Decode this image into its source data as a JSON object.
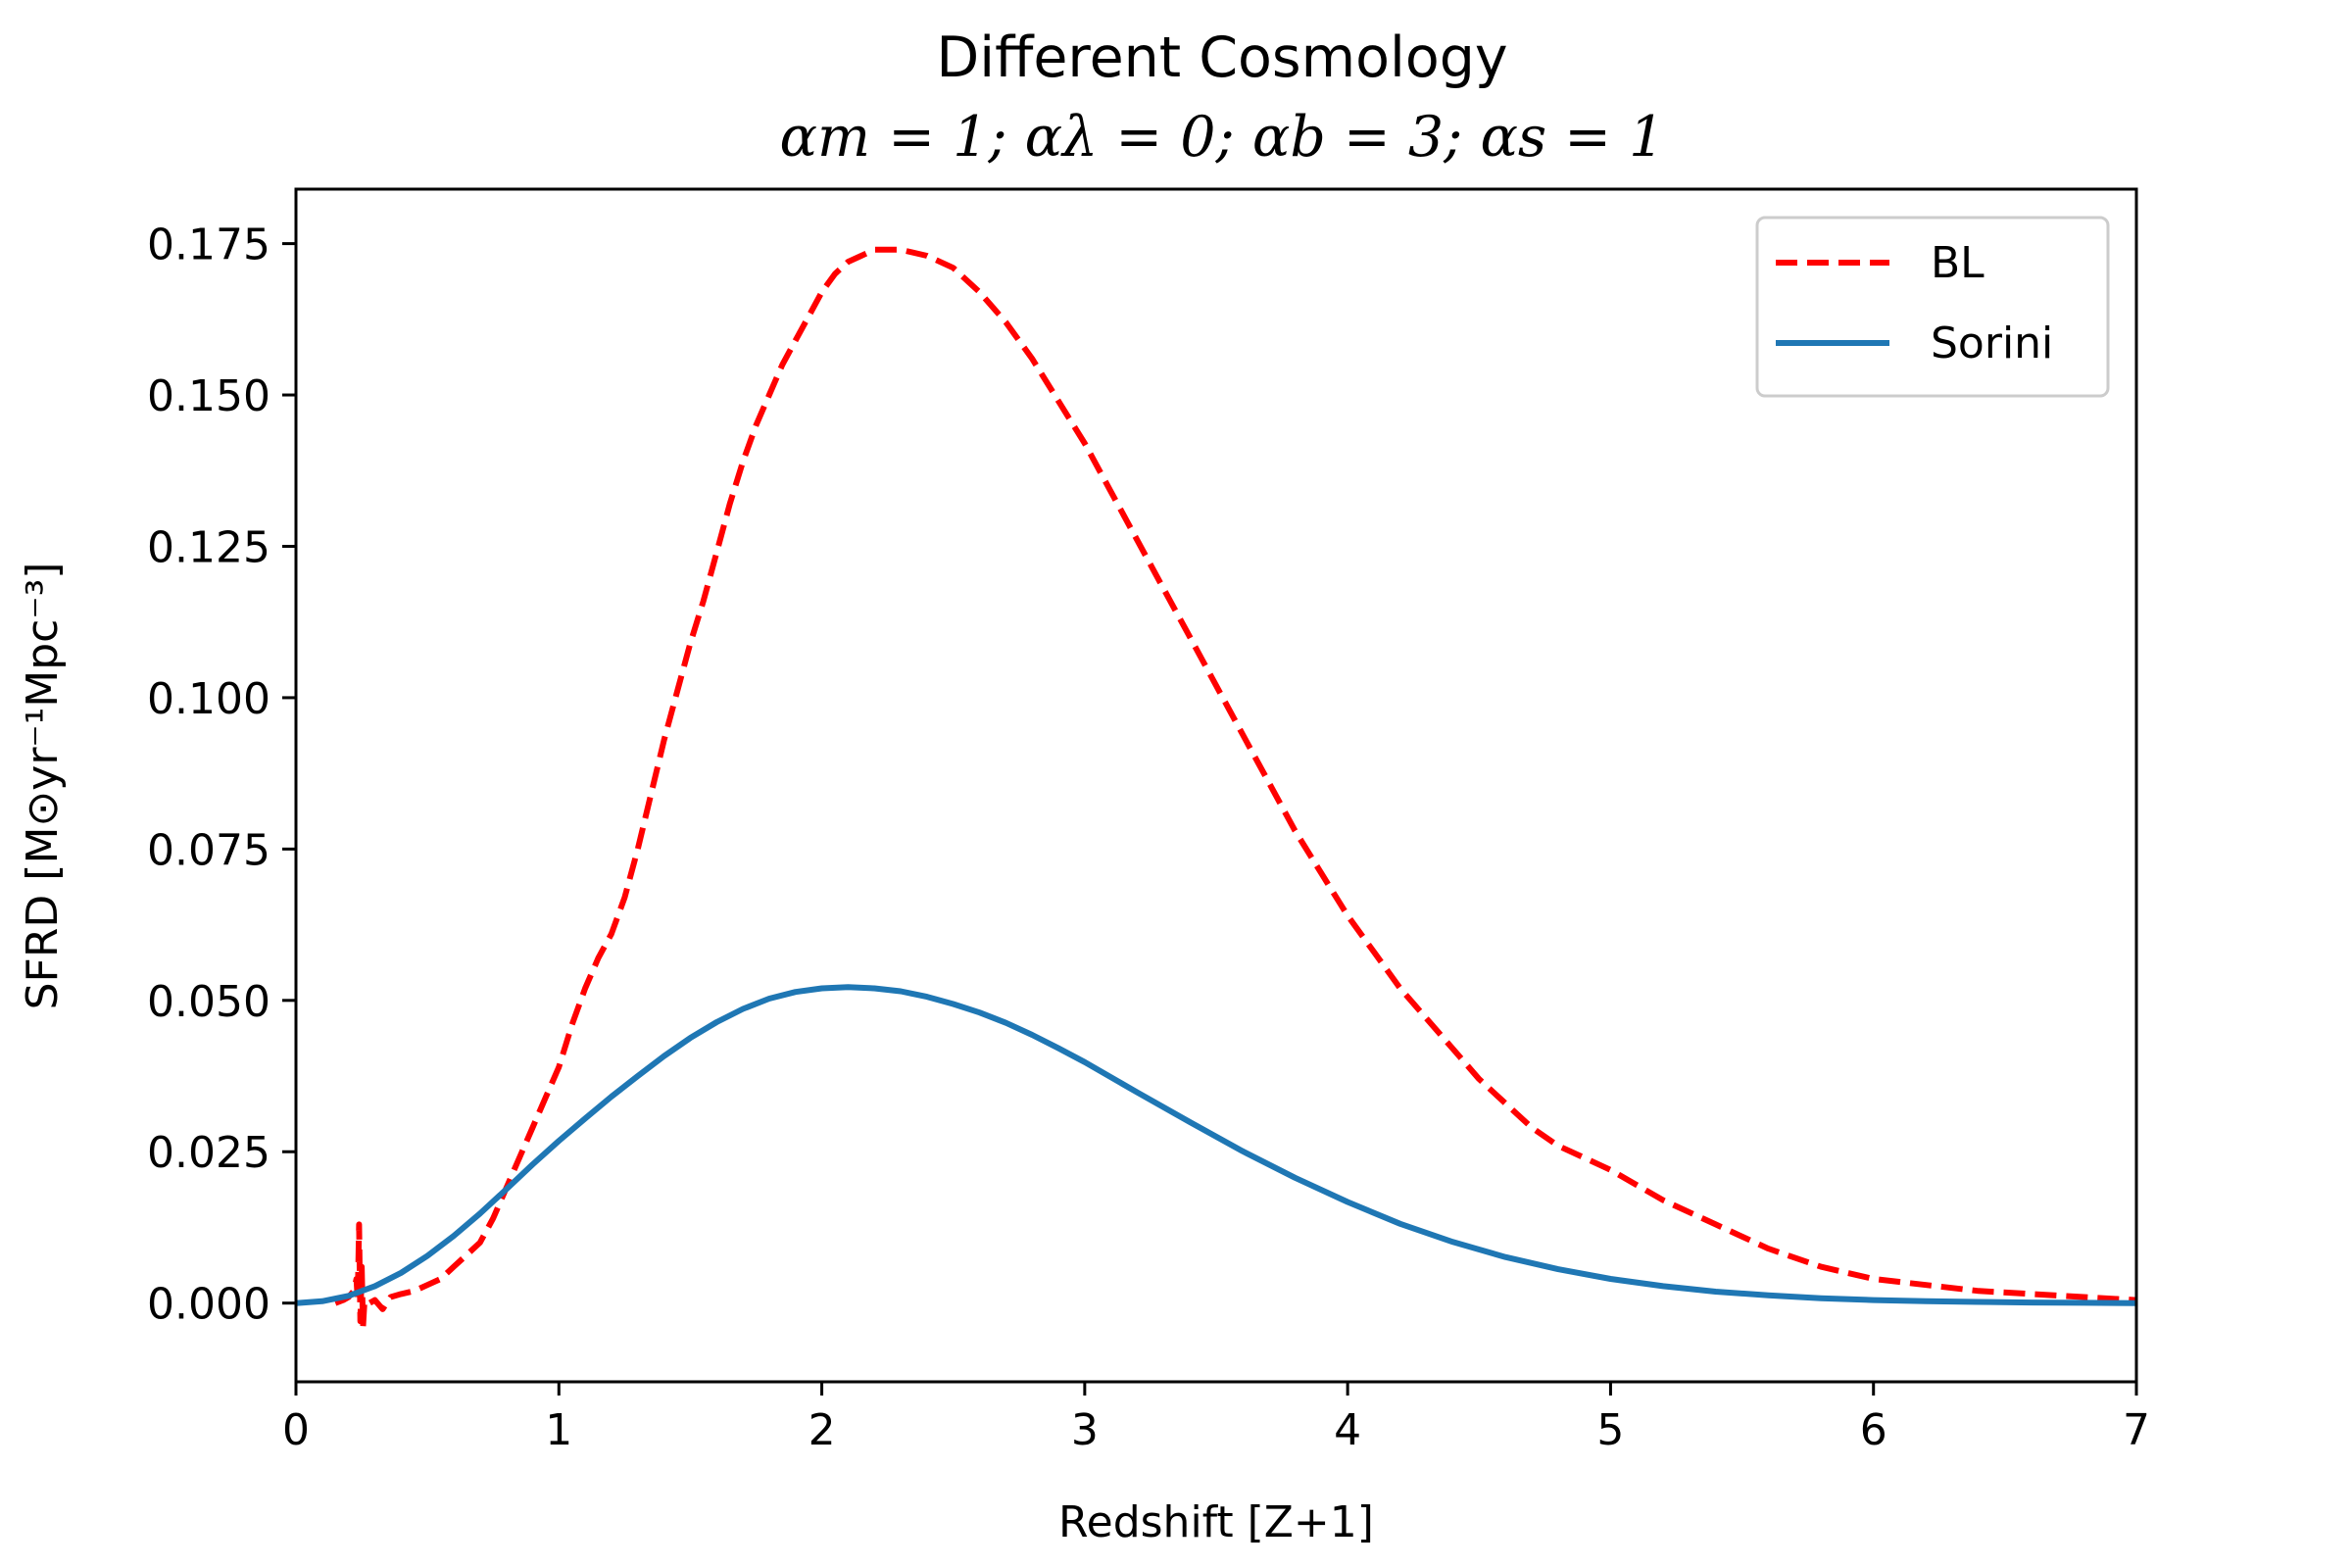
{
  "chart_data": {
    "type": "line",
    "title": "Different Cosmology",
    "subtitle": "αm = 1; αλ = 0; αb = 3; αs = 1",
    "xlabel": "Redshift [Z+1]",
    "ylabel": "SFRD [M⊙yr⁻¹Mpc⁻³]",
    "xlim": [
      0,
      7
    ],
    "ylim": [
      -0.013,
      0.184
    ],
    "xticks": [
      "0",
      "1",
      "2",
      "3",
      "4",
      "5",
      "6",
      "7"
    ],
    "yticks": [
      "0.000",
      "0.025",
      "0.050",
      "0.075",
      "0.100",
      "0.125",
      "0.150",
      "0.175"
    ],
    "grid": false,
    "legend": {
      "position": "top-right"
    },
    "series": [
      {
        "name": "BL",
        "color": "#ff0000",
        "style": "dashed",
        "x": [
          0.15,
          0.18,
          0.2,
          0.22,
          0.225,
          0.23,
          0.235,
          0.24,
          0.245,
          0.25,
          0.255,
          0.26,
          0.27,
          0.28,
          0.3,
          0.33,
          0.36,
          0.4,
          0.45,
          0.5,
          0.55,
          0.6,
          0.65,
          0.7,
          0.75,
          0.8,
          0.85,
          0.9,
          0.95,
          1.0,
          1.05,
          1.1,
          1.15,
          1.2,
          1.25,
          1.3,
          1.35,
          1.4,
          1.45,
          1.5,
          1.55,
          1.6,
          1.65,
          1.7,
          1.75,
          1.8,
          1.85,
          1.9,
          1.95,
          2.0,
          2.05,
          2.1,
          2.15,
          2.2,
          2.25,
          2.3,
          2.4,
          2.5,
          2.6,
          2.7,
          2.8,
          2.9,
          3.0,
          3.1,
          3.2,
          3.3,
          3.4,
          3.5,
          3.6,
          3.7,
          3.8,
          3.9,
          4.0,
          4.1,
          4.2,
          4.3,
          4.4,
          4.5,
          4.6,
          4.7,
          4.8,
          4.9,
          5.0,
          5.2,
          5.4,
          5.6,
          5.8,
          6.0,
          6.2,
          6.4,
          6.6,
          6.8,
          7.0
        ],
        "values": [
          0.0,
          0.0005,
          0.001,
          0.002,
          0.003,
          0.004,
          0.0005,
          0.013,
          -0.003,
          0.006,
          -0.004,
          0.0,
          0.0005,
          0.0,
          0.0005,
          -0.001,
          0.001,
          0.0015,
          0.002,
          0.003,
          0.004,
          0.006,
          0.008,
          0.01,
          0.014,
          0.019,
          0.024,
          0.029,
          0.034,
          0.039,
          0.046,
          0.052,
          0.057,
          0.061,
          0.067,
          0.075,
          0.084,
          0.093,
          0.101,
          0.109,
          0.116,
          0.124,
          0.132,
          0.139,
          0.145,
          0.15,
          0.155,
          0.159,
          0.163,
          0.167,
          0.17,
          0.172,
          0.173,
          0.174,
          0.174,
          0.174,
          0.173,
          0.171,
          0.167,
          0.162,
          0.156,
          0.149,
          0.142,
          0.134,
          0.126,
          0.118,
          0.11,
          0.102,
          0.094,
          0.086,
          0.078,
          0.071,
          0.064,
          0.058,
          0.052,
          0.047,
          0.042,
          0.037,
          0.033,
          0.029,
          0.026,
          0.024,
          0.022,
          0.017,
          0.013,
          0.009,
          0.006,
          0.004,
          0.003,
          0.002,
          0.0015,
          0.001,
          0.0005
        ]
      },
      {
        "name": "Sorini",
        "color": "#1f77b4",
        "style": "solid",
        "x": [
          0.0,
          0.1,
          0.2,
          0.3,
          0.4,
          0.5,
          0.6,
          0.7,
          0.8,
          0.9,
          1.0,
          1.1,
          1.2,
          1.3,
          1.4,
          1.5,
          1.6,
          1.7,
          1.8,
          1.9,
          2.0,
          2.1,
          2.2,
          2.3,
          2.4,
          2.5,
          2.6,
          2.7,
          2.8,
          2.9,
          3.0,
          3.2,
          3.4,
          3.6,
          3.8,
          4.0,
          4.2,
          4.4,
          4.6,
          4.8,
          5.0,
          5.2,
          5.4,
          5.6,
          5.8,
          6.0,
          6.2,
          6.4,
          6.6,
          6.8,
          7.0
        ],
        "values": [
          0.0,
          0.0003,
          0.0012,
          0.0028,
          0.005,
          0.0078,
          0.0111,
          0.0148,
          0.0188,
          0.0229,
          0.0268,
          0.0305,
          0.0341,
          0.0375,
          0.0408,
          0.0438,
          0.0464,
          0.0486,
          0.0503,
          0.0514,
          0.052,
          0.0522,
          0.052,
          0.0515,
          0.0506,
          0.0494,
          0.048,
          0.0463,
          0.0443,
          0.0421,
          0.0398,
          0.0348,
          0.0299,
          0.0251,
          0.0207,
          0.0167,
          0.0131,
          0.0101,
          0.0076,
          0.0056,
          0.004,
          0.0028,
          0.0019,
          0.0013,
          0.0008,
          0.0005,
          0.0003,
          0.0002,
          0.0001,
          5e-05,
          0.0
        ]
      }
    ]
  }
}
